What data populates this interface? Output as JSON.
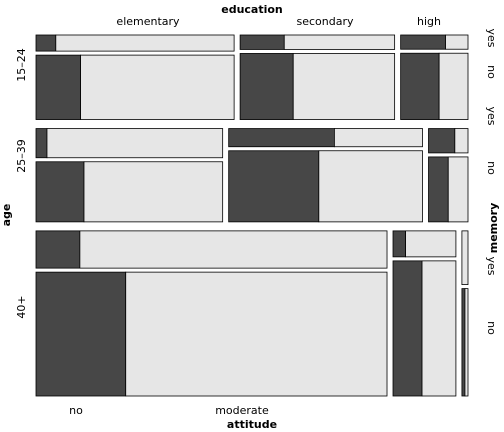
{
  "chart_data": {
    "type": "mosaic",
    "top_variable": "education",
    "left_variable": "age",
    "right_variable": "memory",
    "bottom_variable": "attitude",
    "education_levels": [
      "elementary",
      "secondary",
      "high"
    ],
    "age_levels": [
      "15–24",
      "25–39",
      "40+"
    ],
    "memory_levels": [
      "yes",
      "no"
    ],
    "attitude_levels": [
      "no",
      "moderate"
    ],
    "attitude_colors": {
      "no": "#474747",
      "moderate": "#e6e6e6"
    },
    "counts": {
      "15–24": {
        "elementary": {
          "yes": {
            "no": 1,
            "moderate": 9
          },
          "no": {
            "no": 9,
            "moderate": 31
          }
        },
        "secondary": {
          "yes": {
            "no": 2,
            "moderate": 5
          },
          "no": {
            "no": 11,
            "moderate": 21
          }
        },
        "high": {
          "yes": {
            "no": 2,
            "moderate": 1
          },
          "no": {
            "no": 8,
            "moderate": 6
          }
        }
      },
      "25–39": {
        "elementary": {
          "yes": {
            "no": 1,
            "moderate": 16
          },
          "no": {
            "no": 9,
            "moderate": 26
          }
        },
        "secondary": {
          "yes": {
            "no": 6,
            "moderate": 5
          },
          "no": {
            "no": 20,
            "moderate": 23
          }
        },
        "high": {
          "yes": {
            "no": 2,
            "moderate": 1
          },
          "no": {
            "no": 4,
            "moderate": 4
          }
        }
      },
      "40+": {
        "elementary": {
          "yes": {
            "no": 5,
            "moderate": 35
          },
          "no": {
            "no": 34,
            "moderate": 99
          }
        },
        "secondary": {
          "yes": {
            "no": 1,
            "moderate": 4
          },
          "no": {
            "no": 12,
            "moderate": 14
          }
        },
        "high": {
          "yes": {
            "no": 0,
            "moderate": 1
          },
          "no": {
            "no": 1,
            "moderate": 1
          }
        }
      }
    }
  }
}
